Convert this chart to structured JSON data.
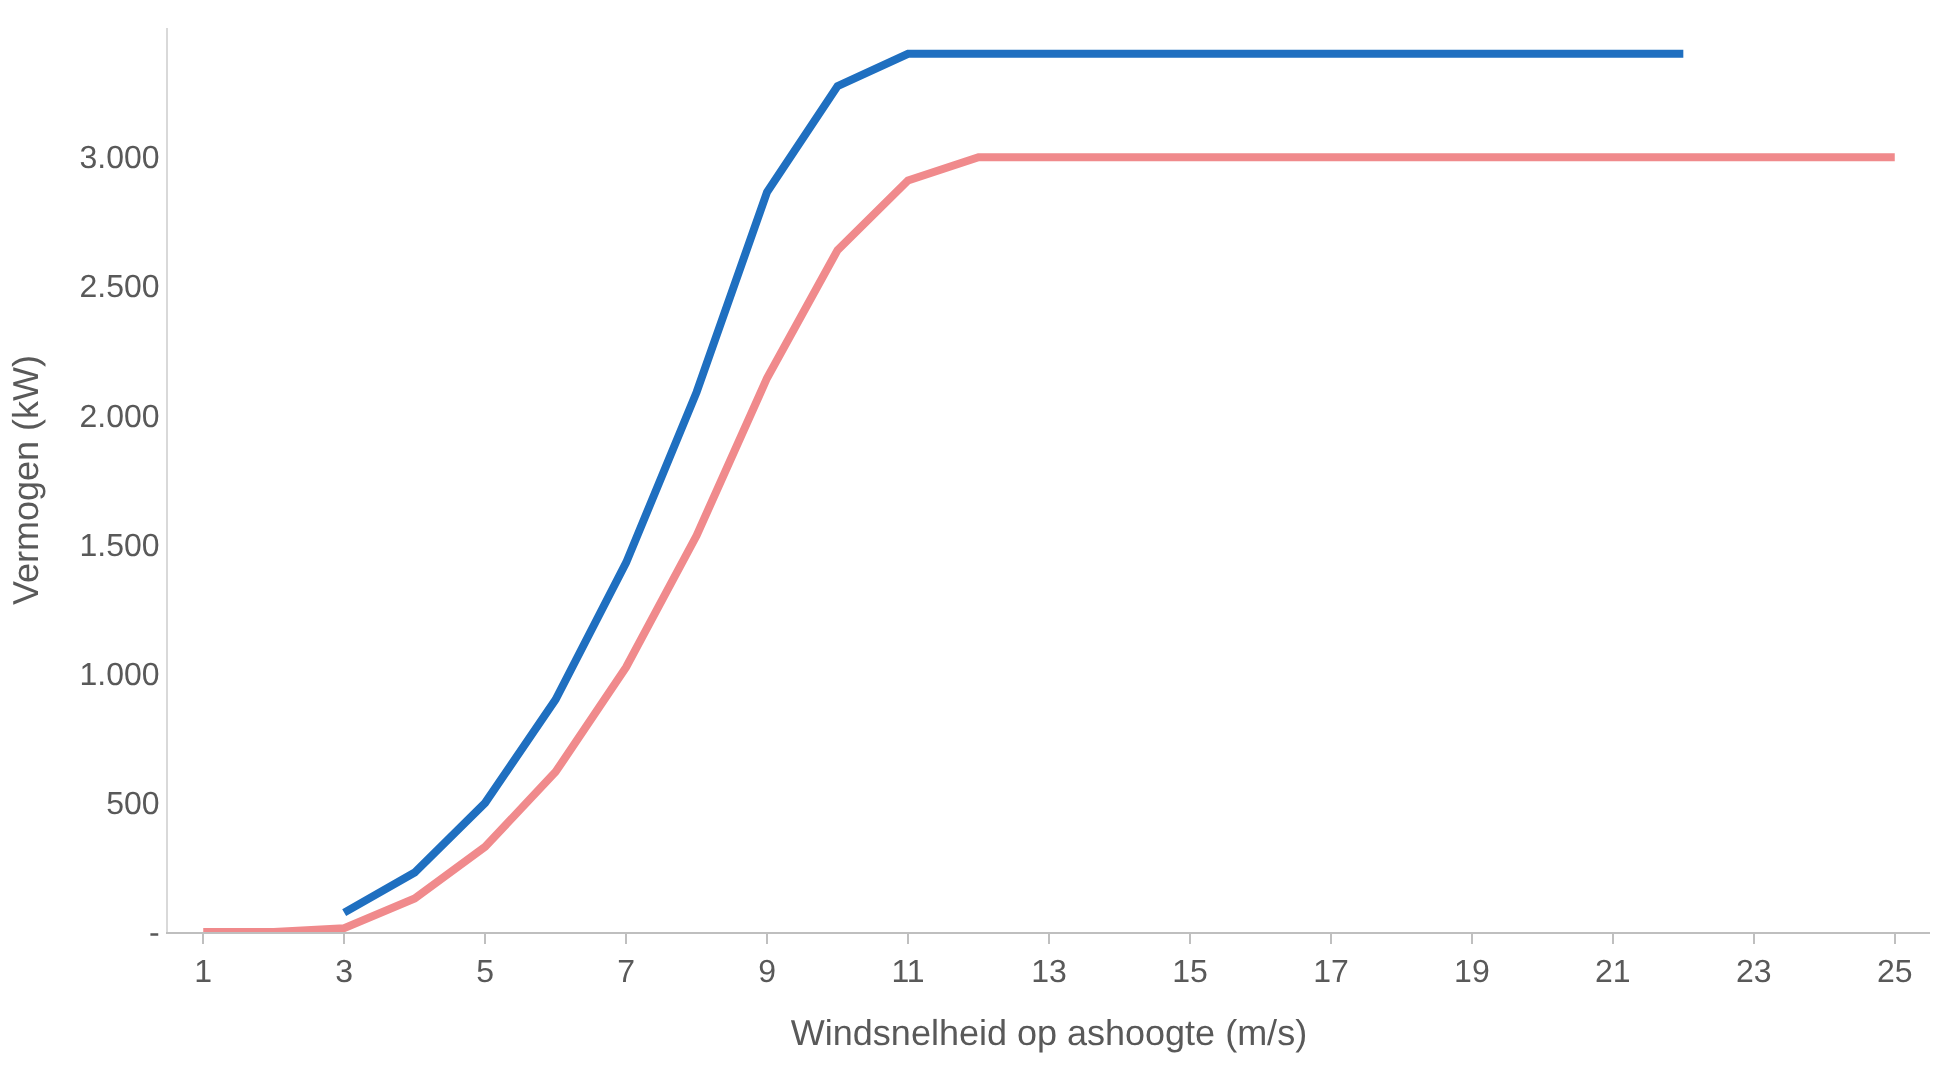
{
  "chart_data": {
    "type": "line",
    "xlabel": "Windsnelheid op ashoogte (m/s)",
    "ylabel": "Vermogen (kW)",
    "xlim": [
      0.5,
      25.5
    ],
    "xticks": [
      1,
      3,
      5,
      7,
      9,
      11,
      13,
      15,
      17,
      19,
      21,
      23,
      25
    ],
    "ylim": [
      0,
      3500
    ],
    "yticks": [
      {
        "value": 0,
        "label": "-"
      },
      500,
      {
        "value": 1000,
        "label": "1.000"
      },
      {
        "value": 1500,
        "label": "1.500"
      },
      {
        "value": 2000,
        "label": "2.000"
      },
      {
        "value": 2500,
        "label": "2.500"
      },
      {
        "value": 3000,
        "label": "3.000"
      }
    ],
    "marker": "none",
    "line_style": "solid",
    "series": [
      {
        "color": "#1f6fc0",
        "x": [
          3,
          4,
          5,
          6,
          7,
          8,
          9,
          10,
          11,
          12,
          13,
          14,
          15,
          16,
          17,
          18,
          19,
          20,
          21,
          22
        ],
        "values": [
          75,
          230,
          500,
          900,
          1430,
          2090,
          2865,
          3275,
          3400,
          3400,
          3400,
          3400,
          3400,
          3400,
          3400,
          3400,
          3400,
          3400,
          3400,
          3400
        ]
      },
      {
        "color": "#f08a8c",
        "x": [
          1,
          2,
          3,
          4,
          5,
          6,
          7,
          8,
          9,
          10,
          11,
          12,
          13,
          14,
          15,
          16,
          17,
          18,
          19,
          20,
          21,
          22,
          23,
          24,
          25
        ],
        "values": [
          0,
          0,
          15,
          130,
          330,
          620,
          1025,
          1535,
          2145,
          2640,
          2910,
          3000,
          3000,
          3000,
          3000,
          3000,
          3000,
          3000,
          3000,
          3000,
          3000,
          3000,
          3000,
          3000,
          3000
        ]
      }
    ]
  }
}
